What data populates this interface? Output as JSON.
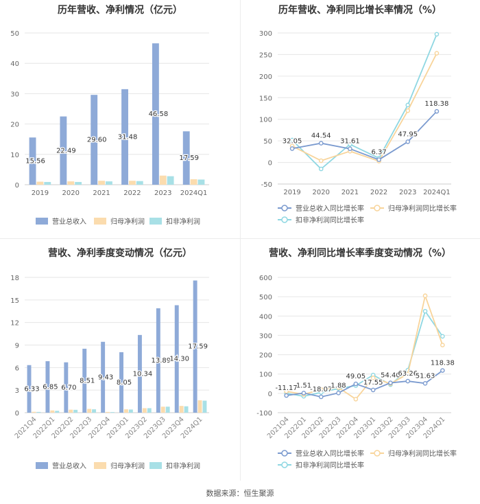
{
  "footer": "数据来源：恒生聚源",
  "colors": {
    "revenue": "#8eaad8",
    "net": "#fbdcae",
    "deduct": "#a8e0e6",
    "revenue_line": "#7a9acf",
    "net_line": "#f8d49a",
    "deduct_line": "#8ed7e2"
  },
  "chart_data": [
    {
      "type": "bar",
      "title": "历年营收、净利情况（亿元）",
      "categories": [
        "2019",
        "2020",
        "2021",
        "2022",
        "2023",
        "2024Q1"
      ],
      "ylim": [
        0,
        50
      ],
      "yticks": [
        0,
        10,
        20,
        30,
        40,
        50
      ],
      "series": [
        {
          "name": "营业总收入",
          "values": [
            15.56,
            22.49,
            29.6,
            31.48,
            46.58,
            17.59
          ],
          "labels": [
            "15.56",
            "22.49",
            "29.60",
            "31.48",
            "46.58",
            "17.59"
          ]
        },
        {
          "name": "归母净利润",
          "values": [
            1.0,
            1.1,
            1.3,
            1.3,
            3.0,
            1.8
          ]
        },
        {
          "name": "扣非净利润",
          "values": [
            0.9,
            0.9,
            1.1,
            1.2,
            2.8,
            1.7
          ]
        }
      ],
      "legend_position": "bottom"
    },
    {
      "type": "line",
      "title": "历年营收、净利同比增长率情况（%）",
      "categories": [
        "2019",
        "2020",
        "2021",
        "2022",
        "2023",
        "2024Q1"
      ],
      "ylim": [
        -50,
        300
      ],
      "yticks": [
        -50,
        0,
        50,
        100,
        150,
        200,
        250,
        300
      ],
      "series": [
        {
          "name": "营业总收入同比增长率",
          "values": [
            32.05,
            44.54,
            31.61,
            6.37,
            47.95,
            118.38
          ],
          "labels": [
            "32.05",
            "44.54",
            "31.61",
            "6.37",
            "47.95",
            "118.38"
          ]
        },
        {
          "name": "归母净利润同比增长率",
          "values": [
            38,
            4,
            26,
            3,
            120,
            253
          ]
        },
        {
          "name": "扣非净利润同比增长率",
          "values": [
            52,
            -15,
            42,
            10,
            133,
            297
          ]
        }
      ],
      "legend_position": "bottom"
    },
    {
      "type": "bar",
      "title": "营收、净利季度变动情况（亿元）",
      "categories": [
        "2021Q4",
        "2022Q1",
        "2022Q2",
        "2022Q3",
        "2022Q4",
        "2023Q1",
        "2023Q2",
        "2023Q3",
        "2023Q4",
        "2024Q1"
      ],
      "ylim": [
        0,
        18
      ],
      "yticks": [
        0,
        3,
        6,
        9,
        12,
        15,
        18
      ],
      "series": [
        {
          "name": "营业总收入",
          "values": [
            6.33,
            6.85,
            6.7,
            8.51,
            9.43,
            8.05,
            10.34,
            13.89,
            14.3,
            17.59
          ],
          "labels": [
            "6.33",
            "6.85",
            "6.70",
            "8.51",
            "9.43",
            "8.05",
            "10.34",
            "13.89",
            "14.30",
            "17.59"
          ]
        },
        {
          "name": "归母净利润",
          "values": [
            0.12,
            0.3,
            0.4,
            0.5,
            0.1,
            0.45,
            0.6,
            0.8,
            0.9,
            1.65
          ]
        },
        {
          "name": "扣非净利润",
          "values": [
            0.1,
            0.25,
            0.38,
            0.45,
            0.08,
            0.42,
            0.6,
            0.8,
            0.85,
            1.6
          ]
        }
      ],
      "legend_position": "bottom"
    },
    {
      "type": "line",
      "title": "营收、净利同比增长率季度变动情况（%）",
      "categories": [
        "2021Q4",
        "2022Q1",
        "2022Q2",
        "2022Q3",
        "2022Q4",
        "2023Q1",
        "2023Q2",
        "2023Q3",
        "2023Q4",
        "2024Q1"
      ],
      "ylim": [
        -100,
        600
      ],
      "yticks": [
        -100,
        0,
        100,
        200,
        300,
        400,
        500,
        600
      ],
      "series": [
        {
          "name": "营业总收入同比增长率",
          "values": [
            -11.17,
            1.51,
            -18.07,
            1.88,
            49.05,
            17.55,
            54.4,
            63.26,
            51.63,
            118.38
          ],
          "labels": [
            "-11.17",
            "1.51",
            "-18.07",
            "1.88",
            "49.05",
            "17.55",
            "54.40",
            "63.26",
            "51.63",
            "118.38"
          ]
        },
        {
          "name": "归母净利润同比增长率",
          "values": [
            10,
            -5,
            20,
            30,
            -30,
            80,
            50,
            100,
            505,
            250
          ]
        },
        {
          "name": "扣非净利润同比增长率",
          "values": [
            0,
            -15,
            5,
            25,
            40,
            95,
            45,
            120,
            425,
            295
          ]
        }
      ],
      "legend_position": "bottom"
    }
  ]
}
